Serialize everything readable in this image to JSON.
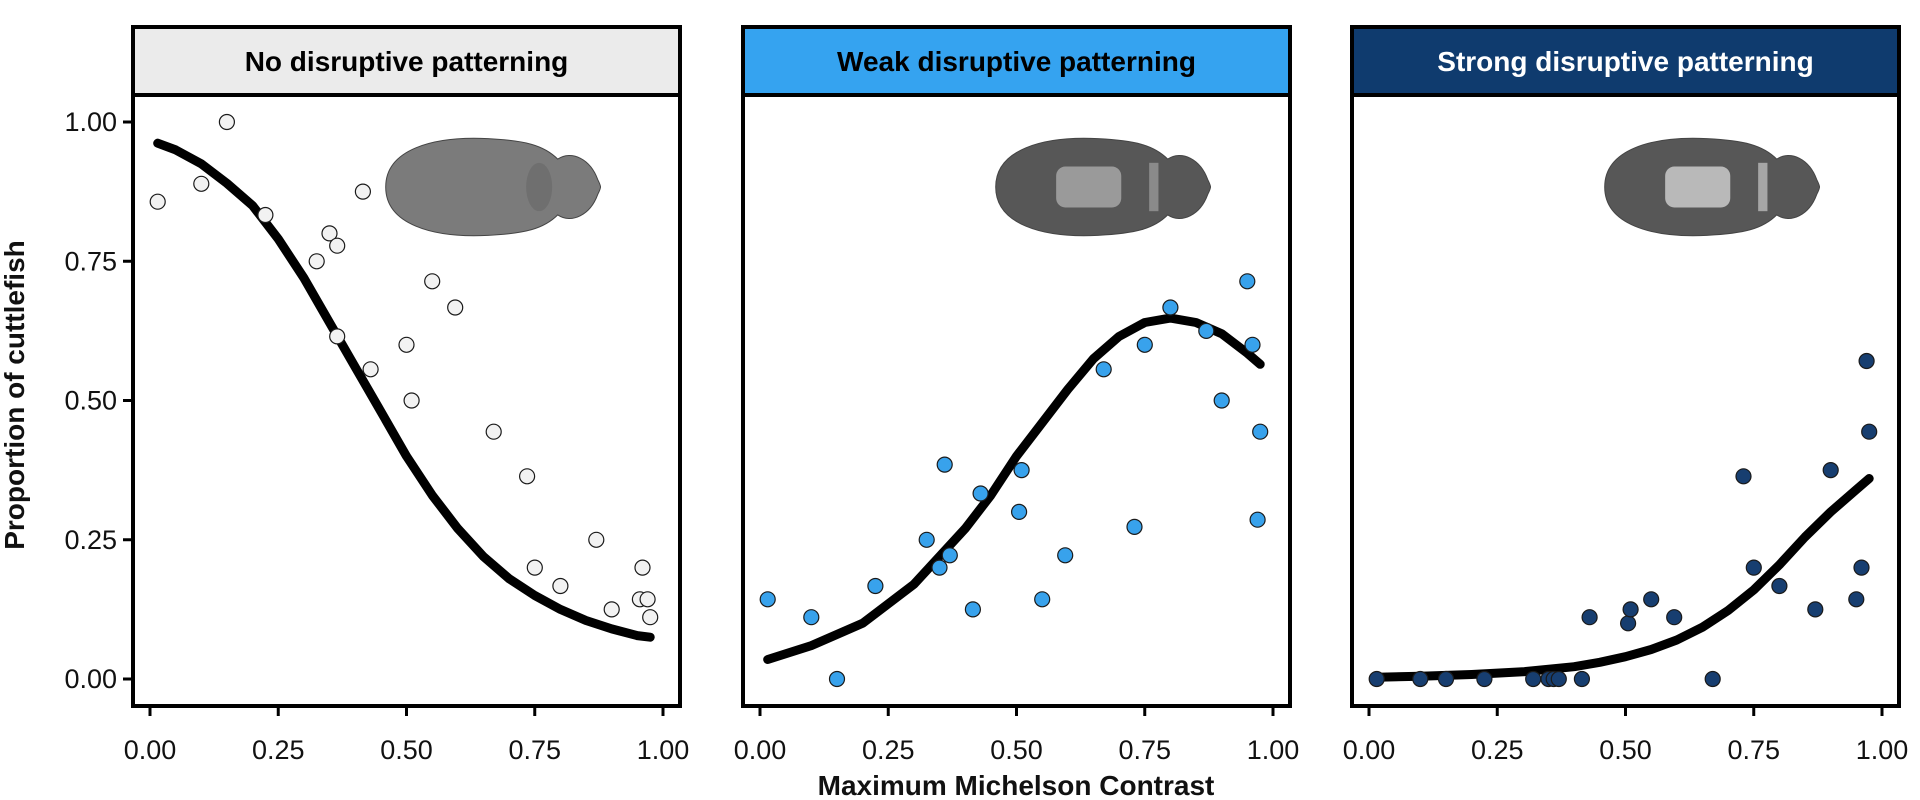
{
  "chart_data": {
    "type": "scatter",
    "xlabel": "Maximum Michelson Contrast",
    "ylabel": "Proportion of cuttlefish",
    "xlim": [
      0,
      1
    ],
    "ylim": [
      0,
      1
    ],
    "x_ticks": [
      "0.00",
      "0.25",
      "0.50",
      "0.75",
      "1.00"
    ],
    "y_ticks": [
      "0.00",
      "0.25",
      "0.50",
      "0.75",
      "1.00"
    ],
    "panels": [
      {
        "title": "No disruptive patterning",
        "header_color": "#ebebeb",
        "title_color": "#000000",
        "point_color": "#f2f2f2",
        "fit": "logistic-decreasing",
        "points": [
          [
            0.015,
            0.857
          ],
          [
            0.1,
            0.889
          ],
          [
            0.15,
            1.0
          ],
          [
            0.225,
            0.833
          ],
          [
            0.325,
            0.75
          ],
          [
            0.35,
            0.8
          ],
          [
            0.365,
            0.778
          ],
          [
            0.365,
            0.615
          ],
          [
            0.415,
            0.875
          ],
          [
            0.43,
            0.556
          ],
          [
            0.5,
            0.6
          ],
          [
            0.51,
            0.5
          ],
          [
            0.55,
            0.714
          ],
          [
            0.595,
            0.667
          ],
          [
            0.67,
            0.444
          ],
          [
            0.735,
            0.364
          ],
          [
            0.75,
            0.2
          ],
          [
            0.8,
            0.167
          ],
          [
            0.87,
            0.25
          ],
          [
            0.9,
            0.125
          ],
          [
            0.955,
            0.143
          ],
          [
            0.96,
            0.2
          ],
          [
            0.97,
            0.143
          ],
          [
            0.975,
            0.111
          ]
        ],
        "curve": [
          [
            0.015,
            0.962
          ],
          [
            0.05,
            0.95
          ],
          [
            0.1,
            0.925
          ],
          [
            0.15,
            0.89
          ],
          [
            0.2,
            0.85
          ],
          [
            0.25,
            0.79
          ],
          [
            0.3,
            0.72
          ],
          [
            0.35,
            0.64
          ],
          [
            0.4,
            0.56
          ],
          [
            0.45,
            0.48
          ],
          [
            0.5,
            0.4
          ],
          [
            0.55,
            0.33
          ],
          [
            0.6,
            0.27
          ],
          [
            0.65,
            0.22
          ],
          [
            0.7,
            0.18
          ],
          [
            0.75,
            0.15
          ],
          [
            0.8,
            0.125
          ],
          [
            0.85,
            0.105
          ],
          [
            0.9,
            0.09
          ],
          [
            0.95,
            0.078
          ],
          [
            0.975,
            0.075
          ]
        ]
      },
      {
        "title": "Weak disruptive patterning",
        "header_color": "#35a3f0",
        "title_color": "#000000",
        "point_color": "#38a2ec",
        "fit": "quadratic-logistic",
        "points": [
          [
            0.015,
            0.143
          ],
          [
            0.1,
            0.111
          ],
          [
            0.15,
            0.0
          ],
          [
            0.225,
            0.167
          ],
          [
            0.325,
            0.25
          ],
          [
            0.35,
            0.2
          ],
          [
            0.36,
            0.385
          ],
          [
            0.37,
            0.222
          ],
          [
            0.415,
            0.125
          ],
          [
            0.43,
            0.333
          ],
          [
            0.505,
            0.3
          ],
          [
            0.51,
            0.375
          ],
          [
            0.55,
            0.143
          ],
          [
            0.595,
            0.222
          ],
          [
            0.67,
            0.556
          ],
          [
            0.73,
            0.273
          ],
          [
            0.75,
            0.6
          ],
          [
            0.8,
            0.667
          ],
          [
            0.87,
            0.625
          ],
          [
            0.9,
            0.5
          ],
          [
            0.95,
            0.714
          ],
          [
            0.96,
            0.6
          ],
          [
            0.97,
            0.286
          ],
          [
            0.975,
            0.444
          ]
        ],
        "curve": [
          [
            0.015,
            0.035
          ],
          [
            0.1,
            0.06
          ],
          [
            0.2,
            0.1
          ],
          [
            0.3,
            0.17
          ],
          [
            0.4,
            0.27
          ],
          [
            0.45,
            0.33
          ],
          [
            0.5,
            0.4
          ],
          [
            0.55,
            0.46
          ],
          [
            0.6,
            0.52
          ],
          [
            0.65,
            0.575
          ],
          [
            0.7,
            0.615
          ],
          [
            0.75,
            0.64
          ],
          [
            0.8,
            0.648
          ],
          [
            0.85,
            0.64
          ],
          [
            0.9,
            0.62
          ],
          [
            0.95,
            0.585
          ],
          [
            0.975,
            0.565
          ]
        ]
      },
      {
        "title": "Strong disruptive patterning",
        "header_color": "#0f3b6e",
        "title_color": "#ffffff",
        "point_color": "#173e70",
        "fit": "logistic-increasing",
        "points": [
          [
            0.015,
            0.0
          ],
          [
            0.1,
            0.0
          ],
          [
            0.15,
            0.0
          ],
          [
            0.225,
            0.0
          ],
          [
            0.32,
            0.0
          ],
          [
            0.35,
            0.0
          ],
          [
            0.36,
            0.0
          ],
          [
            0.37,
            0.0
          ],
          [
            0.415,
            0.0
          ],
          [
            0.43,
            0.111
          ],
          [
            0.505,
            0.1
          ],
          [
            0.51,
            0.125
          ],
          [
            0.55,
            0.143
          ],
          [
            0.595,
            0.111
          ],
          [
            0.67,
            0.0
          ],
          [
            0.73,
            0.364
          ],
          [
            0.75,
            0.2
          ],
          [
            0.8,
            0.167
          ],
          [
            0.87,
            0.125
          ],
          [
            0.9,
            0.375
          ],
          [
            0.95,
            0.143
          ],
          [
            0.96,
            0.2
          ],
          [
            0.97,
            0.571
          ],
          [
            0.975,
            0.444
          ]
        ],
        "curve": [
          [
            0.015,
            0.003
          ],
          [
            0.1,
            0.005
          ],
          [
            0.2,
            0.008
          ],
          [
            0.3,
            0.013
          ],
          [
            0.4,
            0.022
          ],
          [
            0.45,
            0.03
          ],
          [
            0.5,
            0.04
          ],
          [
            0.55,
            0.053
          ],
          [
            0.6,
            0.07
          ],
          [
            0.65,
            0.093
          ],
          [
            0.7,
            0.123
          ],
          [
            0.75,
            0.16
          ],
          [
            0.8,
            0.205
          ],
          [
            0.85,
            0.255
          ],
          [
            0.9,
            0.3
          ],
          [
            0.95,
            0.34
          ],
          [
            0.975,
            0.36
          ]
        ]
      }
    ]
  }
}
